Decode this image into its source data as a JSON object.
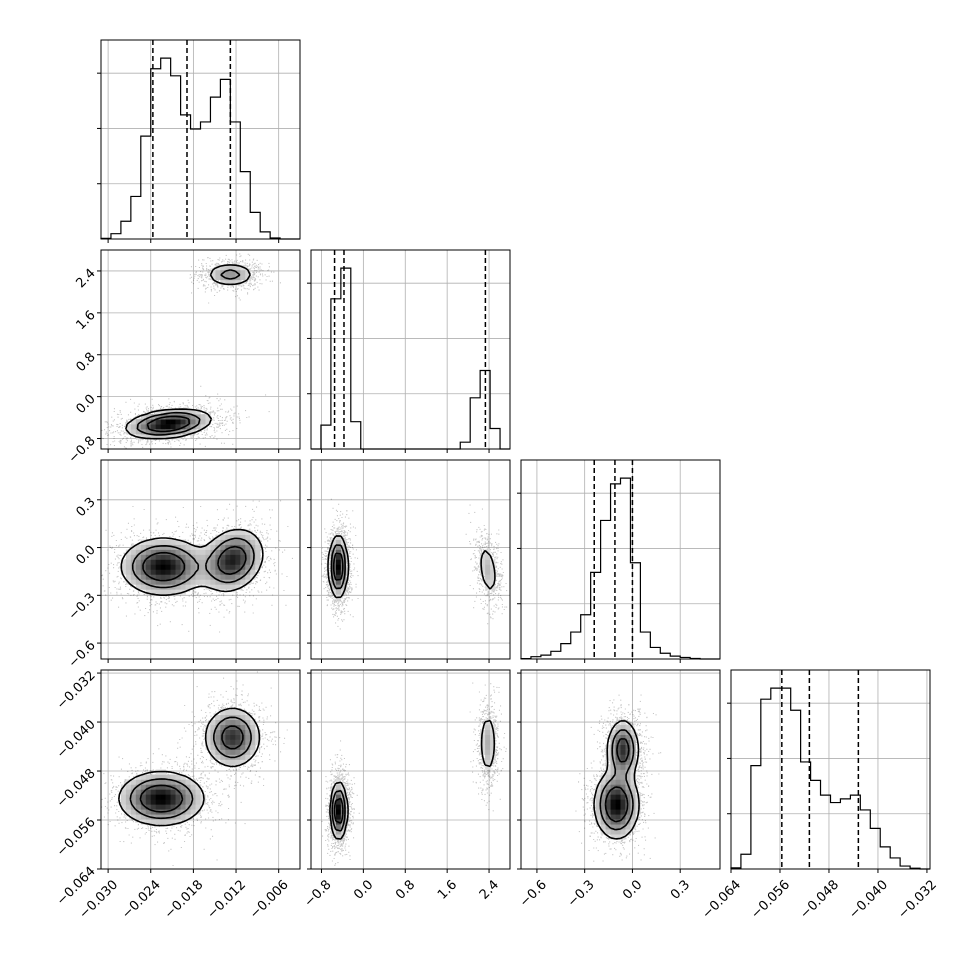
{
  "chart_data": {
    "type": "corner",
    "grid": true,
    "parameters": [
      {
        "range": [
          -0.031,
          -0.003
        ],
        "ticks": [
          "−0.030",
          "−0.024",
          "−0.018",
          "−0.012",
          "−0.006"
        ],
        "tick_values": [
          -0.03,
          -0.024,
          -0.018,
          -0.012,
          -0.006
        ],
        "quantiles": [
          -0.0237,
          -0.0189,
          -0.0128
        ]
      },
      {
        "range": [
          -1.0,
          2.8
        ],
        "ticks": [
          "−0.8",
          "0.0",
          "0.8",
          "1.6",
          "2.4"
        ],
        "tick_values": [
          -0.8,
          0.0,
          0.8,
          1.6,
          2.4
        ],
        "quantiles": [
          -0.55,
          -0.37,
          2.33
        ]
      },
      {
        "range": [
          -0.7,
          0.55
        ],
        "ticks": [
          "−0.6",
          "−0.3",
          "0.0",
          "0.3"
        ],
        "tick_values": [
          -0.6,
          -0.3,
          0.0,
          0.3
        ],
        "quantiles": [
          -0.24,
          -0.11,
          0.0
        ]
      },
      {
        "range": [
          -0.064,
          -0.0315
        ],
        "ticks": [
          "−0.064",
          "−0.056",
          "−0.048",
          "−0.040",
          "−0.032"
        ],
        "tick_values": [
          -0.064,
          -0.056,
          -0.048,
          -0.04,
          -0.032
        ],
        "quantiles": [
          -0.0557,
          -0.0512,
          -0.0432
        ]
      }
    ],
    "histograms": [
      {
        "bins": [
          -0.031,
          -0.0296,
          -0.0282,
          -0.0268,
          -0.0254,
          -0.024,
          -0.0226,
          -0.0212,
          -0.0198,
          -0.0184,
          -0.017,
          -0.0156,
          -0.0142,
          -0.0128,
          -0.0114,
          -0.01,
          -0.0086,
          -0.0072,
          -0.0058,
          -0.0044,
          -0.003
        ],
        "counts": [
          2,
          15,
          50,
          120,
          290,
          480,
          510,
          460,
          350,
          310,
          330,
          400,
          450,
          330,
          190,
          75,
          20,
          3,
          0,
          0
        ]
      },
      {
        "bins": [
          -1.0,
          -0.81,
          -0.62,
          -0.43,
          -0.24,
          -0.05,
          0.14,
          0.33,
          0.52,
          0.71,
          0.9,
          1.09,
          1.28,
          1.47,
          1.66,
          1.85,
          2.04,
          2.23,
          2.42,
          2.61,
          2.8
        ],
        "counts": [
          0,
          70,
          440,
          530,
          80,
          0,
          0,
          0,
          0,
          0,
          0,
          0,
          0,
          0,
          0,
          20,
          150,
          230,
          60,
          0
        ]
      },
      {
        "bins": [
          -0.7,
          -0.6375,
          -0.575,
          -0.5125,
          -0.45,
          -0.3875,
          -0.325,
          -0.2625,
          -0.2,
          -0.1375,
          -0.075,
          -0.0125,
          0.05,
          0.1125,
          0.175,
          0.2375,
          0.3,
          0.3625,
          0.425,
          0.4875,
          0.55
        ],
        "counts": [
          2,
          12,
          20,
          40,
          80,
          140,
          230,
          450,
          720,
          910,
          940,
          500,
          140,
          60,
          30,
          15,
          8,
          3,
          0,
          0
        ]
      },
      {
        "bins": [
          -0.064,
          -0.06238,
          -0.06075,
          -0.05913,
          -0.0575,
          -0.05588,
          -0.05425,
          -0.05263,
          -0.051,
          -0.04938,
          -0.04775,
          -0.04613,
          -0.0445,
          -0.04288,
          -0.04125,
          -0.03963,
          -0.038,
          -0.03638,
          -0.03475,
          -0.03313,
          -0.0315
        ],
        "counts": [
          3,
          40,
          280,
          460,
          490,
          490,
          430,
          290,
          240,
          200,
          180,
          190,
          200,
          160,
          110,
          60,
          30,
          8,
          2,
          0
        ]
      }
    ],
    "density_modes": {
      "p1_vs_p0": [
        {
          "x": -0.0215,
          "y": -0.52,
          "sx": 0.003,
          "sy": 0.14,
          "rho": 0.3,
          "w": 0.5
        },
        {
          "x": -0.0128,
          "y": 2.33,
          "sx": 0.0018,
          "sy": 0.12,
          "rho": 0.0,
          "w": 0.22
        }
      ],
      "p2_vs_p0": [
        {
          "x": -0.0222,
          "y": -0.12,
          "sx": 0.003,
          "sy": 0.09,
          "rho": 0.0,
          "w": 0.5
        },
        {
          "x": -0.0125,
          "y": -0.08,
          "sx": 0.0022,
          "sy": 0.1,
          "rho": 0.2,
          "w": 0.45
        }
      ],
      "p2_vs_p1": [
        {
          "x": -0.48,
          "y": -0.12,
          "sx": 0.09,
          "sy": 0.1,
          "rho": 0.0,
          "w": 0.75
        },
        {
          "x": 2.38,
          "y": -0.14,
          "sx": 0.11,
          "sy": 0.1,
          "rho": -0.4,
          "w": 0.22
        }
      ],
      "p3_vs_p0": [
        {
          "x": -0.0225,
          "y": -0.0525,
          "sx": 0.003,
          "sy": 0.0022,
          "rho": 0.0,
          "w": 0.55
        },
        {
          "x": -0.0125,
          "y": -0.0425,
          "sx": 0.002,
          "sy": 0.0025,
          "rho": 0.0,
          "w": 0.45
        }
      ],
      "p3_vs_p1": [
        {
          "x": -0.47,
          "y": -0.0545,
          "sx": 0.08,
          "sy": 0.0024,
          "rho": 0.0,
          "w": 0.75
        },
        {
          "x": 2.38,
          "y": -0.0435,
          "sx": 0.09,
          "sy": 0.003,
          "rho": 0.0,
          "w": 0.25
        }
      ],
      "p3_vs_p2": [
        {
          "x": -0.1,
          "y": -0.0535,
          "sx": 0.07,
          "sy": 0.0028,
          "rho": 0.0,
          "w": 0.55
        },
        {
          "x": -0.06,
          "y": -0.0445,
          "sx": 0.05,
          "sy": 0.0025,
          "rho": 0.0,
          "w": 0.45
        }
      ]
    }
  }
}
